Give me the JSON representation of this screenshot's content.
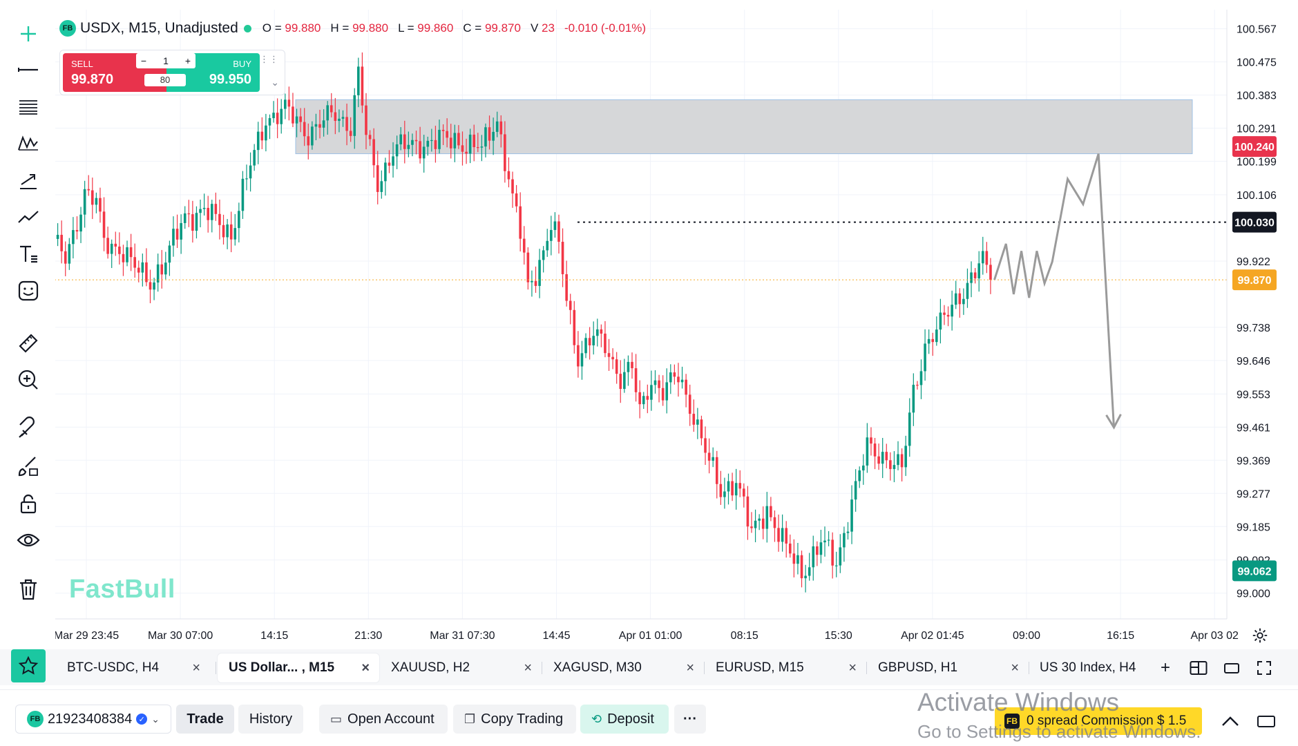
{
  "header": {
    "symbol_badge": "FB",
    "symbol": "USDX, M15, Unadjusted",
    "o_label": "O =",
    "o_value": "99.880",
    "h_label": "H =",
    "h_value": "99.880",
    "l_label": "L =",
    "l_value": "99.860",
    "c_label": "C =",
    "c_value": "99.870",
    "v_label": "V",
    "v_value": "23",
    "change": "-0.010 (-0.01%)"
  },
  "trade_widget": {
    "sell_label": "SELL",
    "sell_price": "99.870",
    "buy_label": "BUY",
    "buy_price": "99.950",
    "quantity": "1",
    "minus": "−",
    "plus": "+",
    "spread": "80"
  },
  "watermark": "FastBull",
  "toolbar": [
    "crosshair-icon",
    "horizontal-line-icon",
    "fib-levels-icon",
    "pattern-icon",
    "trend-arrow-icon",
    "path-icon",
    "text-icon",
    "sticker-icon",
    "ruler-icon",
    "zoom-in-icon",
    "magnet-icon",
    "brush-icon",
    "lock-icon",
    "eye-icon",
    "trash-icon"
  ],
  "chart_data": {
    "type": "candlestick",
    "symbol": "USDX",
    "interval": "M15",
    "y_range": [
      98.94,
      100.62
    ],
    "price_ticks": [
      "100.567",
      "100.475",
      "100.383",
      "100.291",
      "100.199",
      "100.106",
      "99.922",
      "99.738",
      "99.646",
      "99.553",
      "99.461",
      "99.369",
      "99.277",
      "99.185",
      "99.092",
      "99.000"
    ],
    "time_ticks": [
      "Mar 29 23:45",
      "Mar 30 07:00",
      "14:15",
      "21:30",
      "Mar 31 07:30",
      "14:45",
      "Apr 01 01:00",
      "08:15",
      "15:30",
      "Apr 02 01:45",
      "09:00",
      "16:15",
      "Apr 03 02"
    ],
    "price_path": [
      [
        0,
        99.97
      ],
      [
        3,
        99.93
      ],
      [
        8,
        100.11
      ],
      [
        11,
        100.08
      ],
      [
        13,
        99.98
      ],
      [
        17,
        99.96
      ],
      [
        21,
        99.9
      ],
      [
        25,
        99.87
      ],
      [
        29,
        99.92
      ],
      [
        34,
        100.05
      ],
      [
        39,
        100.06
      ],
      [
        46,
        100.0
      ],
      [
        50,
        100.15
      ],
      [
        55,
        100.32
      ],
      [
        60,
        100.34
      ],
      [
        66,
        100.28
      ],
      [
        73,
        100.33
      ],
      [
        77,
        100.3
      ],
      [
        79,
        100.44
      ],
      [
        81,
        100.27
      ],
      [
        84,
        100.14
      ],
      [
        88,
        100.23
      ],
      [
        95,
        100.25
      ],
      [
        104,
        100.26
      ],
      [
        111,
        100.23
      ],
      [
        115,
        100.32
      ],
      [
        117,
        100.21
      ],
      [
        119,
        100.09
      ],
      [
        121,
        100.0
      ],
      [
        123,
        99.85
      ],
      [
        126,
        99.92
      ],
      [
        129,
        100.02
      ],
      [
        131,
        99.96
      ],
      [
        133,
        99.82
      ],
      [
        136,
        99.66
      ],
      [
        140,
        99.71
      ],
      [
        143,
        99.69
      ],
      [
        147,
        99.6
      ],
      [
        150,
        99.62
      ],
      [
        152,
        99.5
      ],
      [
        155,
        99.6
      ],
      [
        158,
        99.56
      ],
      [
        162,
        99.6
      ],
      [
        166,
        99.5
      ],
      [
        170,
        99.36
      ],
      [
        173,
        99.28
      ],
      [
        177,
        99.32
      ],
      [
        181,
        99.16
      ],
      [
        185,
        99.24
      ],
      [
        190,
        99.12
      ],
      [
        194,
        99.06
      ],
      [
        199,
        99.14
      ],
      [
        203,
        99.08
      ],
      [
        207,
        99.26
      ],
      [
        211,
        99.4
      ],
      [
        216,
        99.38
      ],
      [
        220,
        99.34
      ],
      [
        223,
        99.56
      ],
      [
        226,
        99.69
      ],
      [
        230,
        99.74
      ],
      [
        234,
        99.82
      ],
      [
        238,
        99.87
      ],
      [
        241,
        99.92
      ],
      [
        243,
        99.87
      ]
    ],
    "last_price": "99.870",
    "last_price_color": "#f5a623",
    "annotations": {
      "resistance_zone": [
        100.22,
        100.37
      ],
      "resistance_label": "100.240",
      "resistance_label_color": "#e8334c",
      "level_line": 100.03,
      "level_label": "100.030",
      "level_label_color": "#131722",
      "support_label": "99.062",
      "support_label_color": "#089981",
      "projection_path": [
        [
          244,
          99.87
        ],
        [
          247,
          99.97
        ],
        [
          249,
          99.83
        ],
        [
          251,
          99.95
        ],
        [
          253,
          99.82
        ],
        [
          255,
          99.95
        ],
        [
          257,
          99.86
        ],
        [
          259,
          99.92
        ],
        [
          263,
          100.15
        ],
        [
          267,
          100.08
        ],
        [
          271,
          100.22
        ],
        [
          275,
          99.46
        ]
      ]
    },
    "colors": {
      "up": "#089981",
      "down": "#f23645"
    },
    "grid": true
  },
  "tabs": [
    {
      "label": "BTC-USDC, H4",
      "close": "×",
      "active": false
    },
    {
      "label": "US Dollar... , M15",
      "close": "×",
      "active": true
    },
    {
      "label": "XAUUSD, H2",
      "close": "×",
      "active": false
    },
    {
      "label": "XAGUSD, M30",
      "close": "×",
      "active": false
    },
    {
      "label": "EURUSD, M15",
      "close": "×",
      "active": false
    },
    {
      "label": "GBPUSD, H1",
      "close": "×",
      "active": false
    },
    {
      "label": "US 30 Index, H4",
      "active": false
    }
  ],
  "tab_add": "+",
  "bottom": {
    "account_badge": "FB",
    "account_id": "21923408384",
    "trade": "Trade",
    "history": "History",
    "open_account": "Open Account",
    "copy_trading": "Copy Trading",
    "deposit": "Deposit",
    "more": "···",
    "promo": "0 spread Commission $ 1.5",
    "promo_icon": "FB"
  },
  "overlay": {
    "title": "Activate Windows",
    "subtitle": "Go to Settings to activate Windows."
  }
}
